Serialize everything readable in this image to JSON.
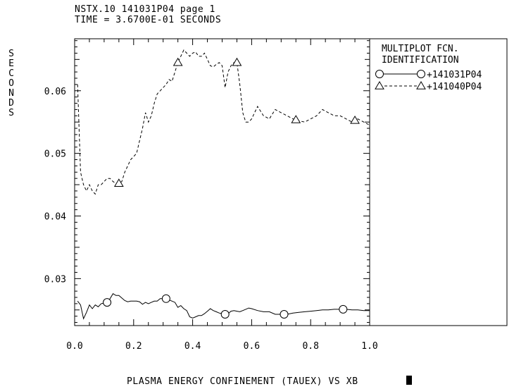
{
  "header": {
    "line1": "NSTX.10 141031P04 page 1",
    "line2": "TIME = 3.6700E-01 SECONDS"
  },
  "chart_data": {
    "type": "line",
    "title": "",
    "xlabel": "PLASMA ENERGY CONFINEMENT (TAUEX) VS XB",
    "ylabel": "SECONDS",
    "xlim": [
      0.0,
      1.0
    ],
    "ylim": [
      0.0225,
      0.0683
    ],
    "xticks": [
      0.0,
      0.2,
      0.4,
      0.6,
      0.8,
      1.0
    ],
    "xtick_labels": [
      "0.0",
      "0.2",
      "0.4",
      "0.6",
      "0.8",
      "1.0"
    ],
    "yticks": [
      0.03,
      0.04,
      0.05,
      0.06
    ],
    "ytick_labels": [
      "0.03",
      "0.04",
      "0.05",
      "0.06"
    ],
    "grid": false,
    "legend": {
      "title_line1": "MULTIPLOT FCN.",
      "title_line2": "IDENTIFICATION",
      "placement": "right"
    },
    "series": [
      {
        "name": "+141031P04",
        "line_style": "solid",
        "marker": "circle",
        "color": "#000000",
        "x": [
          0.01,
          0.02,
          0.03,
          0.04,
          0.05,
          0.06,
          0.07,
          0.08,
          0.09,
          0.1,
          0.11,
          0.12,
          0.13,
          0.14,
          0.15,
          0.16,
          0.17,
          0.18,
          0.19,
          0.2,
          0.21,
          0.22,
          0.23,
          0.24,
          0.25,
          0.26,
          0.27,
          0.28,
          0.29,
          0.3,
          0.31,
          0.32,
          0.33,
          0.34,
          0.35,
          0.36,
          0.37,
          0.38,
          0.39,
          0.4,
          0.41,
          0.42,
          0.43,
          0.44,
          0.45,
          0.46,
          0.47,
          0.48,
          0.49,
          0.5,
          0.51,
          0.52,
          0.53,
          0.54,
          0.55,
          0.56,
          0.57,
          0.58,
          0.59,
          0.6,
          0.62,
          0.64,
          0.66,
          0.68,
          0.7,
          0.72,
          0.74,
          0.76,
          0.78,
          0.8,
          0.82,
          0.84,
          0.86,
          0.88,
          0.9,
          0.92,
          0.94,
          0.96,
          0.98,
          1.0
        ],
        "values": [
          0.0264,
          0.0258,
          0.0236,
          0.0246,
          0.0258,
          0.0252,
          0.0258,
          0.0255,
          0.026,
          0.0261,
          0.0262,
          0.0268,
          0.0276,
          0.0273,
          0.0273,
          0.0269,
          0.0265,
          0.0263,
          0.0264,
          0.0264,
          0.0264,
          0.0263,
          0.0259,
          0.0262,
          0.026,
          0.0262,
          0.0264,
          0.0264,
          0.0268,
          0.0268,
          0.0268,
          0.0266,
          0.0264,
          0.0262,
          0.0254,
          0.0257,
          0.0252,
          0.0249,
          0.0239,
          0.0237,
          0.0239,
          0.0241,
          0.0241,
          0.0244,
          0.0248,
          0.0252,
          0.0249,
          0.0247,
          0.0245,
          0.0244,
          0.0243,
          0.0244,
          0.0248,
          0.0249,
          0.0248,
          0.0247,
          0.0249,
          0.0251,
          0.0253,
          0.0252,
          0.0249,
          0.0247,
          0.0247,
          0.0243,
          0.0243,
          0.0243,
          0.0245,
          0.0246,
          0.0247,
          0.0248,
          0.0249,
          0.025,
          0.025,
          0.0251,
          0.0251,
          0.0251,
          0.025,
          0.025,
          0.0249,
          0.0249
        ],
        "markers_at_x": [
          0.11,
          0.31,
          0.51,
          0.71,
          0.91
        ]
      },
      {
        "name": "+141040P04",
        "line_style": "dashed",
        "marker": "triangle",
        "color": "#000000",
        "x": [
          0.01,
          0.02,
          0.03,
          0.04,
          0.05,
          0.06,
          0.07,
          0.08,
          0.09,
          0.1,
          0.11,
          0.12,
          0.13,
          0.14,
          0.15,
          0.16,
          0.17,
          0.18,
          0.19,
          0.2,
          0.21,
          0.22,
          0.23,
          0.24,
          0.25,
          0.26,
          0.27,
          0.28,
          0.29,
          0.3,
          0.31,
          0.32,
          0.33,
          0.34,
          0.35,
          0.36,
          0.37,
          0.38,
          0.39,
          0.4,
          0.41,
          0.42,
          0.43,
          0.44,
          0.45,
          0.46,
          0.47,
          0.48,
          0.49,
          0.5,
          0.51,
          0.52,
          0.53,
          0.54,
          0.55,
          0.56,
          0.57,
          0.58,
          0.59,
          0.6,
          0.62,
          0.64,
          0.66,
          0.68,
          0.7,
          0.72,
          0.74,
          0.76,
          0.78,
          0.8,
          0.82,
          0.84,
          0.86,
          0.88,
          0.9,
          0.92,
          0.94,
          0.96,
          0.98,
          1.0
        ],
        "values": [
          0.061,
          0.047,
          0.045,
          0.044,
          0.045,
          0.044,
          0.0435,
          0.045,
          0.045,
          0.0455,
          0.046,
          0.046,
          0.0455,
          0.0452,
          0.0452,
          0.0455,
          0.047,
          0.048,
          0.049,
          0.0495,
          0.05,
          0.052,
          0.054,
          0.0565,
          0.055,
          0.056,
          0.058,
          0.0595,
          0.06,
          0.0605,
          0.061,
          0.0618,
          0.0615,
          0.063,
          0.0645,
          0.0655,
          0.0665,
          0.066,
          0.0655,
          0.066,
          0.0662,
          0.0655,
          0.0655,
          0.066,
          0.065,
          0.064,
          0.0638,
          0.0642,
          0.0645,
          0.064,
          0.0605,
          0.063,
          0.064,
          0.0645,
          0.0645,
          0.061,
          0.0565,
          0.055,
          0.055,
          0.0555,
          0.0575,
          0.056,
          0.0555,
          0.057,
          0.0565,
          0.056,
          0.0555,
          0.0552,
          0.055,
          0.0555,
          0.056,
          0.057,
          0.0565,
          0.056,
          0.056,
          0.0555,
          0.055,
          0.0555,
          0.055,
          0.0545
        ],
        "markers_at_x": [
          0.15,
          0.35,
          0.55,
          0.75,
          0.95
        ]
      }
    ]
  }
}
